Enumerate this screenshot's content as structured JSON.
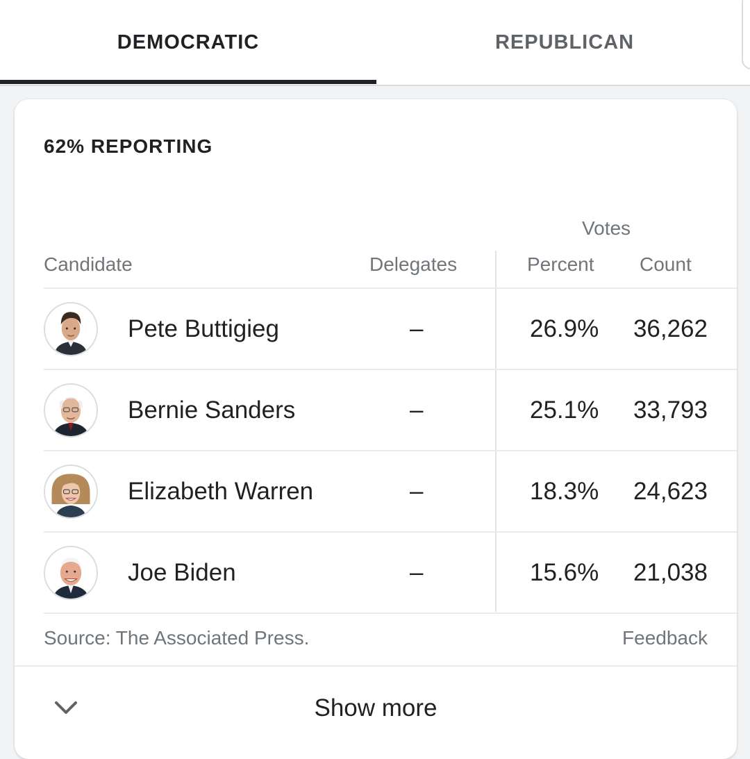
{
  "tabs": [
    {
      "label": "DEMOCRATIC",
      "selected": true
    },
    {
      "label": "REPUBLICAN",
      "selected": false
    }
  ],
  "reporting": "62% REPORTING",
  "table": {
    "group_header": "Votes",
    "headers": {
      "candidate": "Candidate",
      "delegates": "Delegates",
      "percent": "Percent",
      "count": "Count"
    },
    "rows": [
      {
        "name": "Pete Buttigieg",
        "delegates": "–",
        "percent": "26.9%",
        "count": "36,262"
      },
      {
        "name": "Bernie Sanders",
        "delegates": "–",
        "percent": "25.1%",
        "count": "33,793"
      },
      {
        "name": "Elizabeth Warren",
        "delegates": "–",
        "percent": "18.3%",
        "count": "24,623"
      },
      {
        "name": "Joe Biden",
        "delegates": "–",
        "percent": "15.6%",
        "count": "21,038"
      }
    ]
  },
  "source": "Source: The Associated Press.",
  "feedback": "Feedback",
  "show_more": {
    "label": "Show more",
    "icon": "chevron-down-icon"
  },
  "colors": {
    "selected_tab": "#202124",
    "muted_text": "#70757a",
    "divider": "#e8eaed"
  }
}
